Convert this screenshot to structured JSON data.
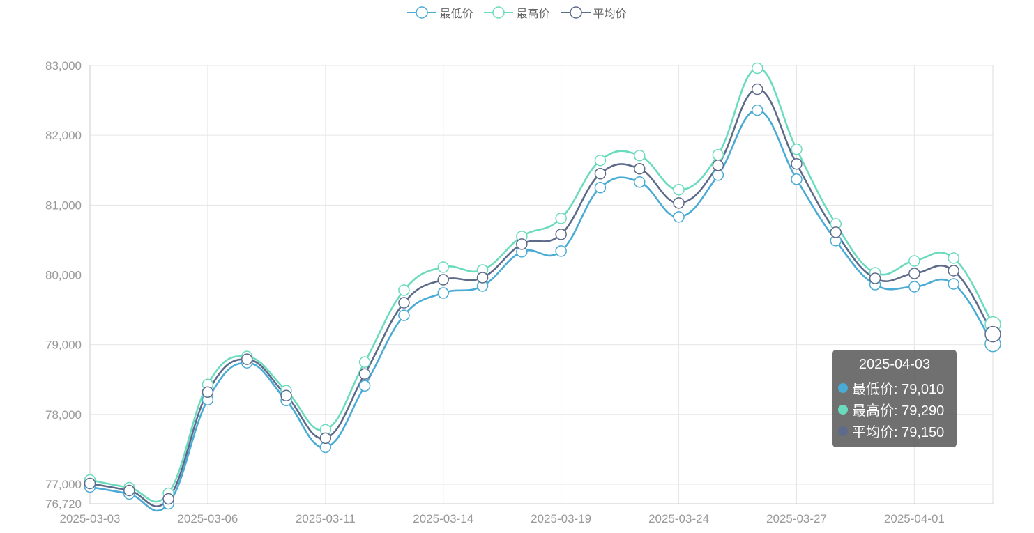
{
  "chart_data": {
    "type": "line",
    "x": [
      "2025-03-03",
      "2025-03-04",
      "2025-03-05",
      "2025-03-06",
      "2025-03-07",
      "2025-03-10",
      "2025-03-11",
      "2025-03-12",
      "2025-03-13",
      "2025-03-14",
      "2025-03-17",
      "2025-03-18",
      "2025-03-19",
      "2025-03-20",
      "2025-03-21",
      "2025-03-24",
      "2025-03-25",
      "2025-03-26",
      "2025-03-27",
      "2025-03-28",
      "2025-03-31",
      "2025-04-01",
      "2025-04-02",
      "2025-04-03"
    ],
    "xticks": [
      "2025-03-03",
      "2025-03-06",
      "2025-03-11",
      "2025-03-14",
      "2025-03-19",
      "2025-03-24",
      "2025-03-27",
      "2025-04-01"
    ],
    "yticks": [
      "76,720",
      "77,000",
      "78,000",
      "79,000",
      "80,000",
      "81,000",
      "82,000",
      "83,000"
    ],
    "ylim": [
      76720,
      83000
    ],
    "grid": true,
    "legend_position": "top-center",
    "series": [
      {
        "name": "最低价",
        "color": "#4AABD5",
        "values": [
          76960,
          76860,
          76720,
          78210,
          78740,
          78200,
          77530,
          78410,
          79420,
          79740,
          79840,
          80330,
          80340,
          81250,
          81330,
          80830,
          81430,
          82360,
          81370,
          80490,
          79860,
          79830,
          79870,
          79010
        ]
      },
      {
        "name": "最高价",
        "color": "#6BDBBD",
        "values": [
          77060,
          76950,
          76870,
          78430,
          78830,
          78340,
          77780,
          78750,
          79780,
          80110,
          80070,
          80550,
          80810,
          81640,
          81710,
          81220,
          81720,
          82960,
          81800,
          80730,
          80030,
          80200,
          80240,
          79290
        ]
      },
      {
        "name": "平均价",
        "color": "#5E6A8A",
        "values": [
          77010,
          76910,
          76790,
          78320,
          78790,
          78270,
          77660,
          78580,
          79600,
          79930,
          79960,
          80440,
          80580,
          81450,
          81520,
          81030,
          81570,
          82660,
          81590,
          80610,
          79950,
          80020,
          80060,
          79150
        ]
      }
    ]
  },
  "tooltip": {
    "title": "2025-04-03",
    "rows": [
      {
        "label": "最低价: 79,010",
        "color": "#4AABD5"
      },
      {
        "label": "最高价: 79,290",
        "color": "#6BDBBD"
      },
      {
        "label": "平均价: 79,150",
        "color": "#5E6A8A"
      }
    ]
  }
}
